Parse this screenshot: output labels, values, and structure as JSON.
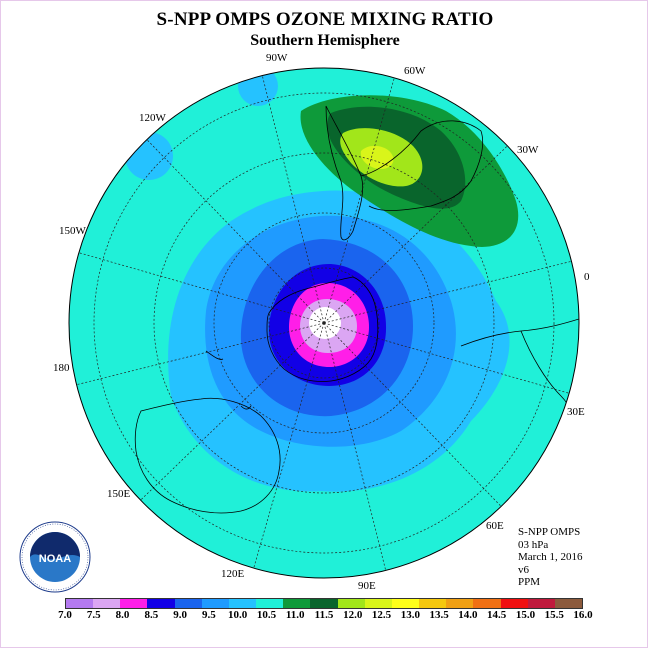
{
  "title": "S-NPP OMPS OZONE MIXING RATIO",
  "subtitle": "Southern Hemisphere",
  "longitude_labels": [
    "90W",
    "60W",
    "30W",
    "0",
    "30E",
    "60E",
    "90E",
    "120E",
    "150E",
    "180",
    "150W",
    "120W"
  ],
  "info": {
    "product": "S-NPP OMPS",
    "level": "03 hPa",
    "date": "March 1, 2016",
    "version": "v6",
    "units": "PPM"
  },
  "colorbar": {
    "ticks": [
      "7.0",
      "7.5",
      "8.0",
      "8.5",
      "9.0",
      "9.5",
      "10.0",
      "10.5",
      "11.0",
      "11.5",
      "12.0",
      "12.5",
      "13.0",
      "13.5",
      "14.0",
      "14.5",
      "15.0",
      "15.5",
      "16.0"
    ],
    "colors": [
      "#b47af0",
      "#dba6f3",
      "#ff1ee8",
      "#1200e6",
      "#1a64ee",
      "#1f9bff",
      "#25c2ff",
      "#20f0d8",
      "#0e9a3a",
      "#09652c",
      "#a2e61a",
      "#d9f51a",
      "#ffff1a",
      "#f5c80e",
      "#f0a014",
      "#f07014",
      "#f01010",
      "#c01a3c",
      "#8c5a3c"
    ]
  },
  "logo": {
    "name": "noaa-logo",
    "text": "NOAA"
  },
  "colors": {
    "background_contour": "#20f0d8",
    "outer_ring": "#25c2ff",
    "mid_ring": "#1f9bff",
    "inner_blue": "#1a64ee",
    "deep_blue": "#1200e6",
    "magenta": "#ff1ee8",
    "lilac": "#dba6f3",
    "green_dark": "#09652c",
    "green": "#0e9a3a",
    "lime": "#a2e61a",
    "yellow_green": "#d9f51a"
  }
}
